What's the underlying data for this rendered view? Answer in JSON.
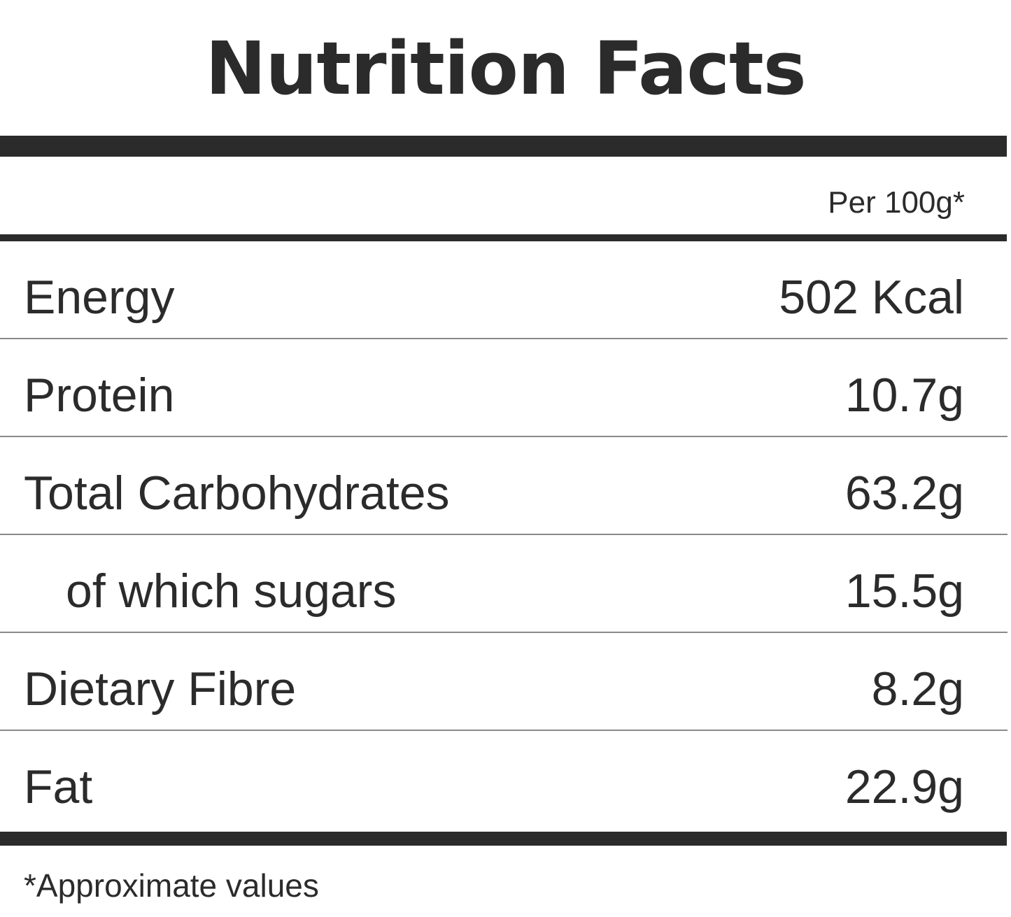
{
  "title": "Nutrition Facts",
  "per_label": "Per 100g*",
  "rows": [
    {
      "name": "Energy",
      "value": "502 Kcal"
    },
    {
      "name": "Protein",
      "value": "10.7g"
    },
    {
      "name": "Total Carbohydrates",
      "value": "63.2g"
    },
    {
      "name": "of which sugars",
      "value": "15.5g"
    },
    {
      "name": "Dietary Fibre",
      "value": "8.2g"
    },
    {
      "name": "Fat",
      "value": "22.9g"
    }
  ],
  "footnote": "*Approximate values",
  "colors": {
    "text": "#2b2b2b",
    "rule": "#2b2b2b",
    "divider": "#8a8a8a",
    "background": "#ffffff"
  }
}
